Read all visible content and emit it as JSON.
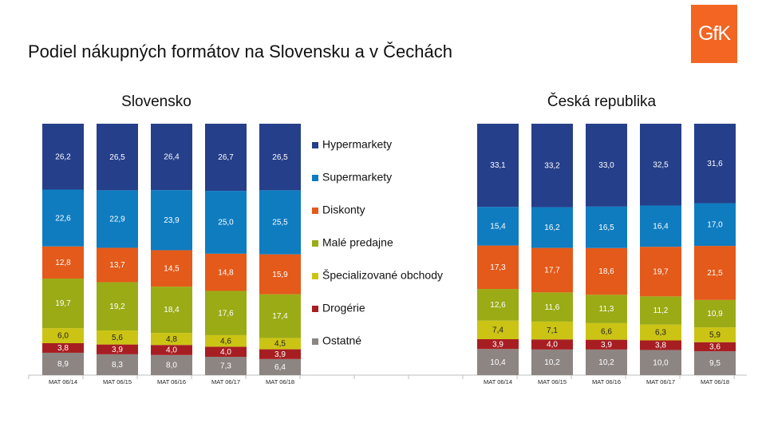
{
  "title": "Podiel nákupných formátov na Slovensku a v Čechách",
  "logo": {
    "text": "GfK",
    "color": "#f26522"
  },
  "colors": {
    "Hypermarkety": "#253f8a",
    "Supermarkety": "#0f7cc0",
    "Diskonty": "#e35a1a",
    "Malé predajne": "#9aab16",
    "Špecializované obchody": "#cbc414",
    "Drogérie": "#a71e22",
    "Ostatné": "#8c8582"
  },
  "chart_data": [
    {
      "type": "bar",
      "stacked": true,
      "normalized": true,
      "title": "Slovensko",
      "categories": [
        "MAT 06/14",
        "MAT 06/15",
        "MAT 06/16",
        "MAT 06/17",
        "MAT 06/18"
      ],
      "series": [
        {
          "name": "Ostatné",
          "values": [
            8.9,
            8.3,
            8.0,
            7.3,
            6.4
          ],
          "labels": [
            "8,9",
            "8,3",
            "8,0",
            "7,3",
            "6,4"
          ]
        },
        {
          "name": "Drogérie",
          "values": [
            3.8,
            3.9,
            4.0,
            4.0,
            3.9
          ],
          "labels": [
            "3,8",
            "3,9",
            "4,0",
            "4,0",
            "3,9"
          ]
        },
        {
          "name": "Špecializované obchody",
          "values": [
            6.0,
            5.6,
            4.8,
            4.6,
            4.5
          ],
          "labels": [
            "6,0",
            "5,6",
            "4,8",
            "4,6",
            "4,5"
          ]
        },
        {
          "name": "Malé predajne",
          "values": [
            19.7,
            19.2,
            18.4,
            17.6,
            17.4
          ],
          "labels": [
            "19,7",
            "19,2",
            "18,4",
            "17,6",
            "17,4"
          ]
        },
        {
          "name": "Diskonty",
          "values": [
            12.8,
            13.7,
            14.5,
            14.8,
            15.9
          ],
          "labels": [
            "12,8",
            "13,7",
            "14,5",
            "14,8",
            "15,9"
          ]
        },
        {
          "name": "Supermarkety",
          "values": [
            22.6,
            22.9,
            23.9,
            25.0,
            25.5
          ],
          "labels": [
            "22,6",
            "22,9",
            "23,9",
            "25,0",
            "25,5"
          ]
        },
        {
          "name": "Hypermarkety",
          "values": [
            26.2,
            26.5,
            26.4,
            26.7,
            26.5
          ],
          "labels": [
            "26,2",
            "26,5",
            "26,4",
            "26,7",
            "26,5"
          ]
        }
      ]
    },
    {
      "type": "bar",
      "stacked": true,
      "normalized": true,
      "title": "Česká republika",
      "categories": [
        "MAT 06/14",
        "MAT 06/15",
        "MAT 06/16",
        "MAT 06/17",
        "MAT 06/18"
      ],
      "series": [
        {
          "name": "Ostatné",
          "values": [
            10.4,
            10.2,
            10.2,
            10.0,
            9.5
          ],
          "labels": [
            "10,4",
            "10,2",
            "10,2",
            "10,0",
            "9,5"
          ]
        },
        {
          "name": "Drogérie",
          "values": [
            3.9,
            4.0,
            3.9,
            3.8,
            3.6
          ],
          "labels": [
            "3,9",
            "4,0",
            "3,9",
            "3,8",
            "3,6"
          ]
        },
        {
          "name": "Špecializované obchody",
          "values": [
            7.4,
            7.1,
            6.6,
            6.3,
            5.9
          ],
          "labels": [
            "7,4",
            "7,1",
            "6,6",
            "6,3",
            "5,9"
          ]
        },
        {
          "name": "Malé predajne",
          "values": [
            12.6,
            11.6,
            11.3,
            11.2,
            10.9
          ],
          "labels": [
            "12,6",
            "11,6",
            "11,3",
            "11,2",
            "10,9"
          ]
        },
        {
          "name": "Diskonty",
          "values": [
            17.3,
            17.7,
            18.6,
            19.7,
            21.5
          ],
          "labels": [
            "17,3",
            "17,7",
            "18,6",
            "19,7",
            "21,5"
          ]
        },
        {
          "name": "Supermarkety",
          "values": [
            15.4,
            16.2,
            16.5,
            16.4,
            17.0
          ],
          "labels": [
            "15,4",
            "16,2",
            "16,5",
            "16,4",
            "17,0"
          ]
        },
        {
          "name": "Hypermarkety",
          "values": [
            33.1,
            33.2,
            33.0,
            32.5,
            31.6
          ],
          "labels": [
            "33,1",
            "33,2",
            "33,0",
            "32,5",
            "31,6"
          ]
        }
      ]
    }
  ],
  "legend": {
    "items": [
      "Hypermarkety",
      "Supermarkety",
      "Diskonty",
      "Malé predajne",
      "Špecializované obchody",
      "Drogérie",
      "Ostatné"
    ]
  }
}
